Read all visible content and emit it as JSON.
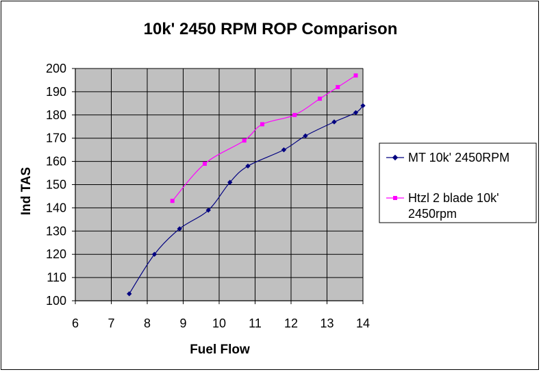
{
  "chart_data": {
    "type": "line",
    "title": "10k' 2450 RPM ROP Comparison",
    "xlabel": "Fuel Flow",
    "ylabel": "Ind TAS",
    "xlim": [
      6,
      14
    ],
    "ylim": [
      100,
      200
    ],
    "xticks": [
      "6",
      "7",
      "8",
      "9",
      "10",
      "11",
      "12",
      "13",
      "14"
    ],
    "yticks": [
      "100",
      "110",
      "120",
      "130",
      "140",
      "150",
      "160",
      "170",
      "180",
      "190",
      "200"
    ],
    "grid": true,
    "legend_position": "right",
    "series": [
      {
        "name": "MT 10k' 2450RPM",
        "color": "#000080",
        "marker": "diamond",
        "points": [
          [
            7.5,
            103
          ],
          [
            8.2,
            120
          ],
          [
            8.9,
            131
          ],
          [
            9.7,
            139
          ],
          [
            10.3,
            151
          ],
          [
            10.8,
            158
          ],
          [
            11.8,
            165
          ],
          [
            12.4,
            171
          ],
          [
            13.2,
            177
          ],
          [
            13.8,
            181
          ],
          [
            14.0,
            184
          ]
        ]
      },
      {
        "name": "Htzl 2 blade 10k' 2450rpm",
        "color": "#ff00ff",
        "marker": "square",
        "points": [
          [
            8.7,
            143
          ],
          [
            9.6,
            159
          ],
          [
            10.7,
            169
          ],
          [
            11.2,
            176
          ],
          [
            12.1,
            180
          ],
          [
            12.8,
            187
          ],
          [
            13.3,
            192
          ],
          [
            13.8,
            197
          ]
        ]
      }
    ]
  },
  "legend_lines": [
    [
      "MT 10k' 2450RPM"
    ],
    [
      "Htzl 2 blade 10k'",
      "2450rpm"
    ]
  ]
}
